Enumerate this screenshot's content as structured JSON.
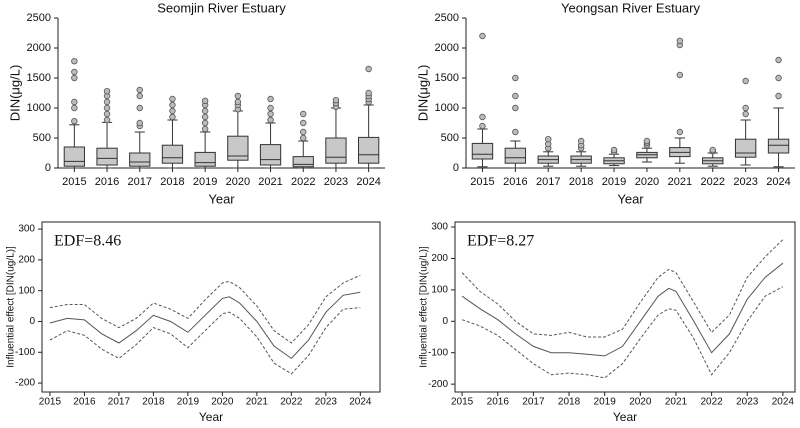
{
  "chart_data": [
    {
      "type": "box",
      "title": "Seomjin River Estuary",
      "x_label": "Year",
      "y_label": "DIN(μg/L)",
      "categories": [
        "2015",
        "2016",
        "2017",
        "2018",
        "2019",
        "2020",
        "2021",
        "2022",
        "2023",
        "2024"
      ],
      "boxes": [
        {
          "low": 0,
          "q1": 30,
          "median": 110,
          "q3": 350,
          "high": 720,
          "outliers": [
            780,
            1000,
            1100,
            1500,
            1600,
            1780
          ]
        },
        {
          "low": 0,
          "q1": 50,
          "median": 160,
          "q3": 330,
          "high": 760,
          "outliers": [
            800,
            900,
            1000,
            1100,
            1200,
            1280
          ]
        },
        {
          "low": 0,
          "q1": 30,
          "median": 100,
          "q3": 250,
          "high": 600,
          "outliers": [
            700,
            750,
            1000,
            1200,
            1300
          ]
        },
        {
          "low": 0,
          "q1": 80,
          "median": 170,
          "q3": 380,
          "high": 800,
          "outliers": [
            850,
            950,
            1050,
            1150
          ]
        },
        {
          "low": 0,
          "q1": 30,
          "median": 90,
          "q3": 260,
          "high": 600,
          "outliers": [
            650,
            750,
            850,
            950,
            1050,
            1120
          ]
        },
        {
          "low": 0,
          "q1": 130,
          "median": 200,
          "q3": 530,
          "high": 950,
          "outliers": [
            980,
            1050,
            1100,
            1200
          ]
        },
        {
          "low": 0,
          "q1": 50,
          "median": 140,
          "q3": 390,
          "high": 750,
          "outliers": [
            800,
            900,
            1000,
            1150
          ]
        },
        {
          "low": 0,
          "q1": 20,
          "median": 60,
          "q3": 190,
          "high": 450,
          "outliers": [
            500,
            600,
            750,
            900
          ]
        },
        {
          "low": 0,
          "q1": 80,
          "median": 180,
          "q3": 500,
          "high": 1000,
          "outliers": [
            1020,
            1080,
            1130
          ]
        },
        {
          "low": 0,
          "q1": 80,
          "median": 220,
          "q3": 510,
          "high": 1050,
          "outliers": [
            1100,
            1150,
            1200,
            1250,
            1650
          ]
        }
      ],
      "color": "#c8c8c8",
      "ylim": [
        0,
        2500
      ],
      "yticks": [
        0,
        500,
        1000,
        1500,
        2000,
        2500
      ]
    },
    {
      "type": "box",
      "title": "Yeongsan River Estuary",
      "x_label": "Year",
      "y_label": "DIN(μg/L)",
      "categories": [
        "2015",
        "2016",
        "2017",
        "2018",
        "2019",
        "2020",
        "2021",
        "2022",
        "2023",
        "2024"
      ],
      "boxes": [
        {
          "low": 20,
          "q1": 150,
          "median": 230,
          "q3": 410,
          "high": 650,
          "outliers": [
            700,
            850,
            2200
          ]
        },
        {
          "low": 0,
          "q1": 80,
          "median": 170,
          "q3": 330,
          "high": 450,
          "outliers": [
            600,
            1000,
            1200,
            1500
          ]
        },
        {
          "low": 30,
          "q1": 80,
          "median": 140,
          "q3": 200,
          "high": 270,
          "outliers": [
            330,
            400,
            480
          ]
        },
        {
          "low": 30,
          "q1": 80,
          "median": 140,
          "q3": 200,
          "high": 270,
          "outliers": [
            330,
            380,
            450
          ]
        },
        {
          "low": 40,
          "q1": 70,
          "median": 120,
          "q3": 170,
          "high": 230,
          "outliers": [
            270,
            300
          ]
        },
        {
          "low": 100,
          "q1": 170,
          "median": 220,
          "q3": 260,
          "high": 330,
          "outliers": [
            380,
            420,
            450
          ]
        },
        {
          "low": 80,
          "q1": 190,
          "median": 260,
          "q3": 340,
          "high": 500,
          "outliers": [
            600,
            1550,
            2050,
            2120
          ]
        },
        {
          "low": 30,
          "q1": 70,
          "median": 120,
          "q3": 170,
          "high": 250,
          "outliers": [
            280,
            300
          ]
        },
        {
          "low": 50,
          "q1": 180,
          "median": 250,
          "q3": 480,
          "high": 800,
          "outliers": [
            900,
            1000,
            1450
          ]
        },
        {
          "low": 20,
          "q1": 250,
          "median": 380,
          "q3": 480,
          "high": 1000,
          "outliers": [
            1200,
            1500,
            1800
          ]
        }
      ],
      "color": "#c8c8c8",
      "ylim": [
        0,
        2500
      ],
      "yticks": [
        0,
        500,
        1000,
        1500,
        2000,
        2500
      ]
    },
    {
      "type": "line",
      "annotation": "EDF=8.46",
      "x_label": "Year",
      "y_label": "Influential effect [DIN(ug/L)]",
      "x": [
        2015,
        2015.5,
        2016,
        2016.5,
        2017,
        2017.5,
        2018,
        2018.5,
        2019,
        2019.5,
        2020,
        2020.2,
        2020.5,
        2021,
        2021.5,
        2022,
        2022.5,
        2023,
        2023.5,
        2024
      ],
      "series": [
        {
          "color": "#555555",
          "dashed": false,
          "values": [
            -5,
            10,
            5,
            -40,
            -70,
            -30,
            20,
            0,
            -35,
            20,
            75,
            80,
            60,
            0,
            -80,
            -120,
            -60,
            30,
            85,
            95
          ]
        },
        {
          "color": "#555555",
          "dashed": true,
          "values": [
            45,
            55,
            55,
            10,
            -20,
            10,
            60,
            40,
            10,
            70,
            125,
            130,
            110,
            50,
            -30,
            -70,
            -10,
            80,
            125,
            150
          ]
        },
        {
          "color": "#555555",
          "dashed": true,
          "values": [
            -60,
            -30,
            -45,
            -90,
            -120,
            -75,
            -20,
            -40,
            -85,
            -30,
            25,
            30,
            10,
            -50,
            -135,
            -170,
            -110,
            -20,
            40,
            45
          ]
        }
      ],
      "xlim": [
        2014.77,
        2024.57
      ],
      "xticks": [
        2015,
        2016,
        2017,
        2018,
        2019,
        2020,
        2021,
        2022,
        2023,
        2024
      ],
      "ylim": [
        -229,
        323
      ],
      "yticks": [
        -200,
        -100,
        0,
        100,
        200,
        300
      ]
    },
    {
      "type": "line",
      "annotation": "EDF=8.27",
      "x_label": "Year",
      "y_label": "Influential effect [DIN(ug/L)]",
      "x": [
        2015,
        2015.5,
        2016,
        2016.5,
        2017,
        2017.5,
        2018,
        2018.5,
        2019,
        2019.5,
        2020,
        2020.5,
        2020.8,
        2021,
        2021.5,
        2022,
        2022.5,
        2023,
        2023.5,
        2024
      ],
      "series": [
        {
          "color": "#555555",
          "dashed": false,
          "values": [
            80,
            40,
            5,
            -40,
            -80,
            -100,
            -100,
            -105,
            -110,
            -80,
            0,
            80,
            105,
            95,
            0,
            -100,
            -40,
            70,
            140,
            185
          ]
        },
        {
          "color": "#555555",
          "dashed": true,
          "values": [
            155,
            95,
            55,
            0,
            -40,
            -45,
            -35,
            -50,
            -50,
            -25,
            60,
            140,
            165,
            155,
            60,
            -35,
            20,
            140,
            205,
            260
          ]
        },
        {
          "color": "#555555",
          "dashed": true,
          "values": [
            5,
            -15,
            -45,
            -90,
            -135,
            -170,
            -165,
            -170,
            -180,
            -135,
            -55,
            20,
            40,
            35,
            -55,
            -170,
            -100,
            0,
            80,
            110
          ]
        }
      ],
      "xlim": [
        2014.8,
        2024.34
      ],
      "xticks": [
        2015,
        2016,
        2017,
        2018,
        2019,
        2020,
        2021,
        2022,
        2023,
        2024
      ],
      "ylim": [
        -225,
        316
      ],
      "yticks": [
        -200,
        -100,
        0,
        100,
        200,
        300
      ]
    }
  ]
}
